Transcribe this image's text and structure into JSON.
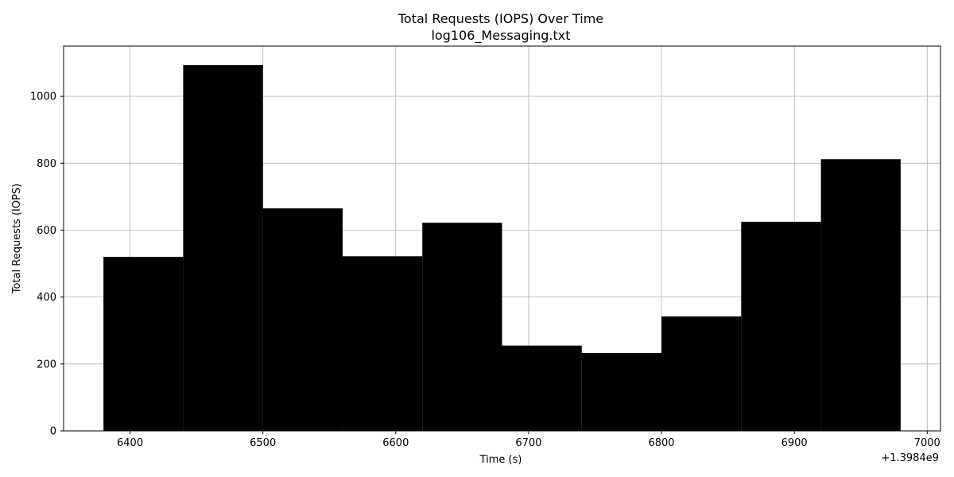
{
  "chart_data": {
    "type": "bar",
    "title": "Total Requests (IOPS) Over Time",
    "subtitle": "log106_Messaging.txt",
    "xlabel": "Time (s)",
    "ylabel": "Total Requests (IOPS)",
    "x_offset_label": "+1.3984e9",
    "xlim": [
      6350,
      7010
    ],
    "ylim": [
      0,
      1150
    ],
    "xticks": [
      6400,
      6500,
      6600,
      6700,
      6800,
      6900,
      7000
    ],
    "yticks": [
      0,
      200,
      400,
      600,
      800,
      1000
    ],
    "grid": true,
    "bar_color": "#000000",
    "bars": [
      {
        "x0": 6380,
        "x1": 6440,
        "value": 520
      },
      {
        "x0": 6440,
        "x1": 6500,
        "value": 1093
      },
      {
        "x0": 6500,
        "x1": 6560,
        "value": 665
      },
      {
        "x0": 6560,
        "x1": 6620,
        "value": 522
      },
      {
        "x0": 6620,
        "x1": 6680,
        "value": 622
      },
      {
        "x0": 6680,
        "x1": 6740,
        "value": 255
      },
      {
        "x0": 6740,
        "x1": 6800,
        "value": 233
      },
      {
        "x0": 6800,
        "x1": 6860,
        "value": 342
      },
      {
        "x0": 6860,
        "x1": 6920,
        "value": 625
      },
      {
        "x0": 6920,
        "x1": 6980,
        "value": 812
      }
    ]
  }
}
